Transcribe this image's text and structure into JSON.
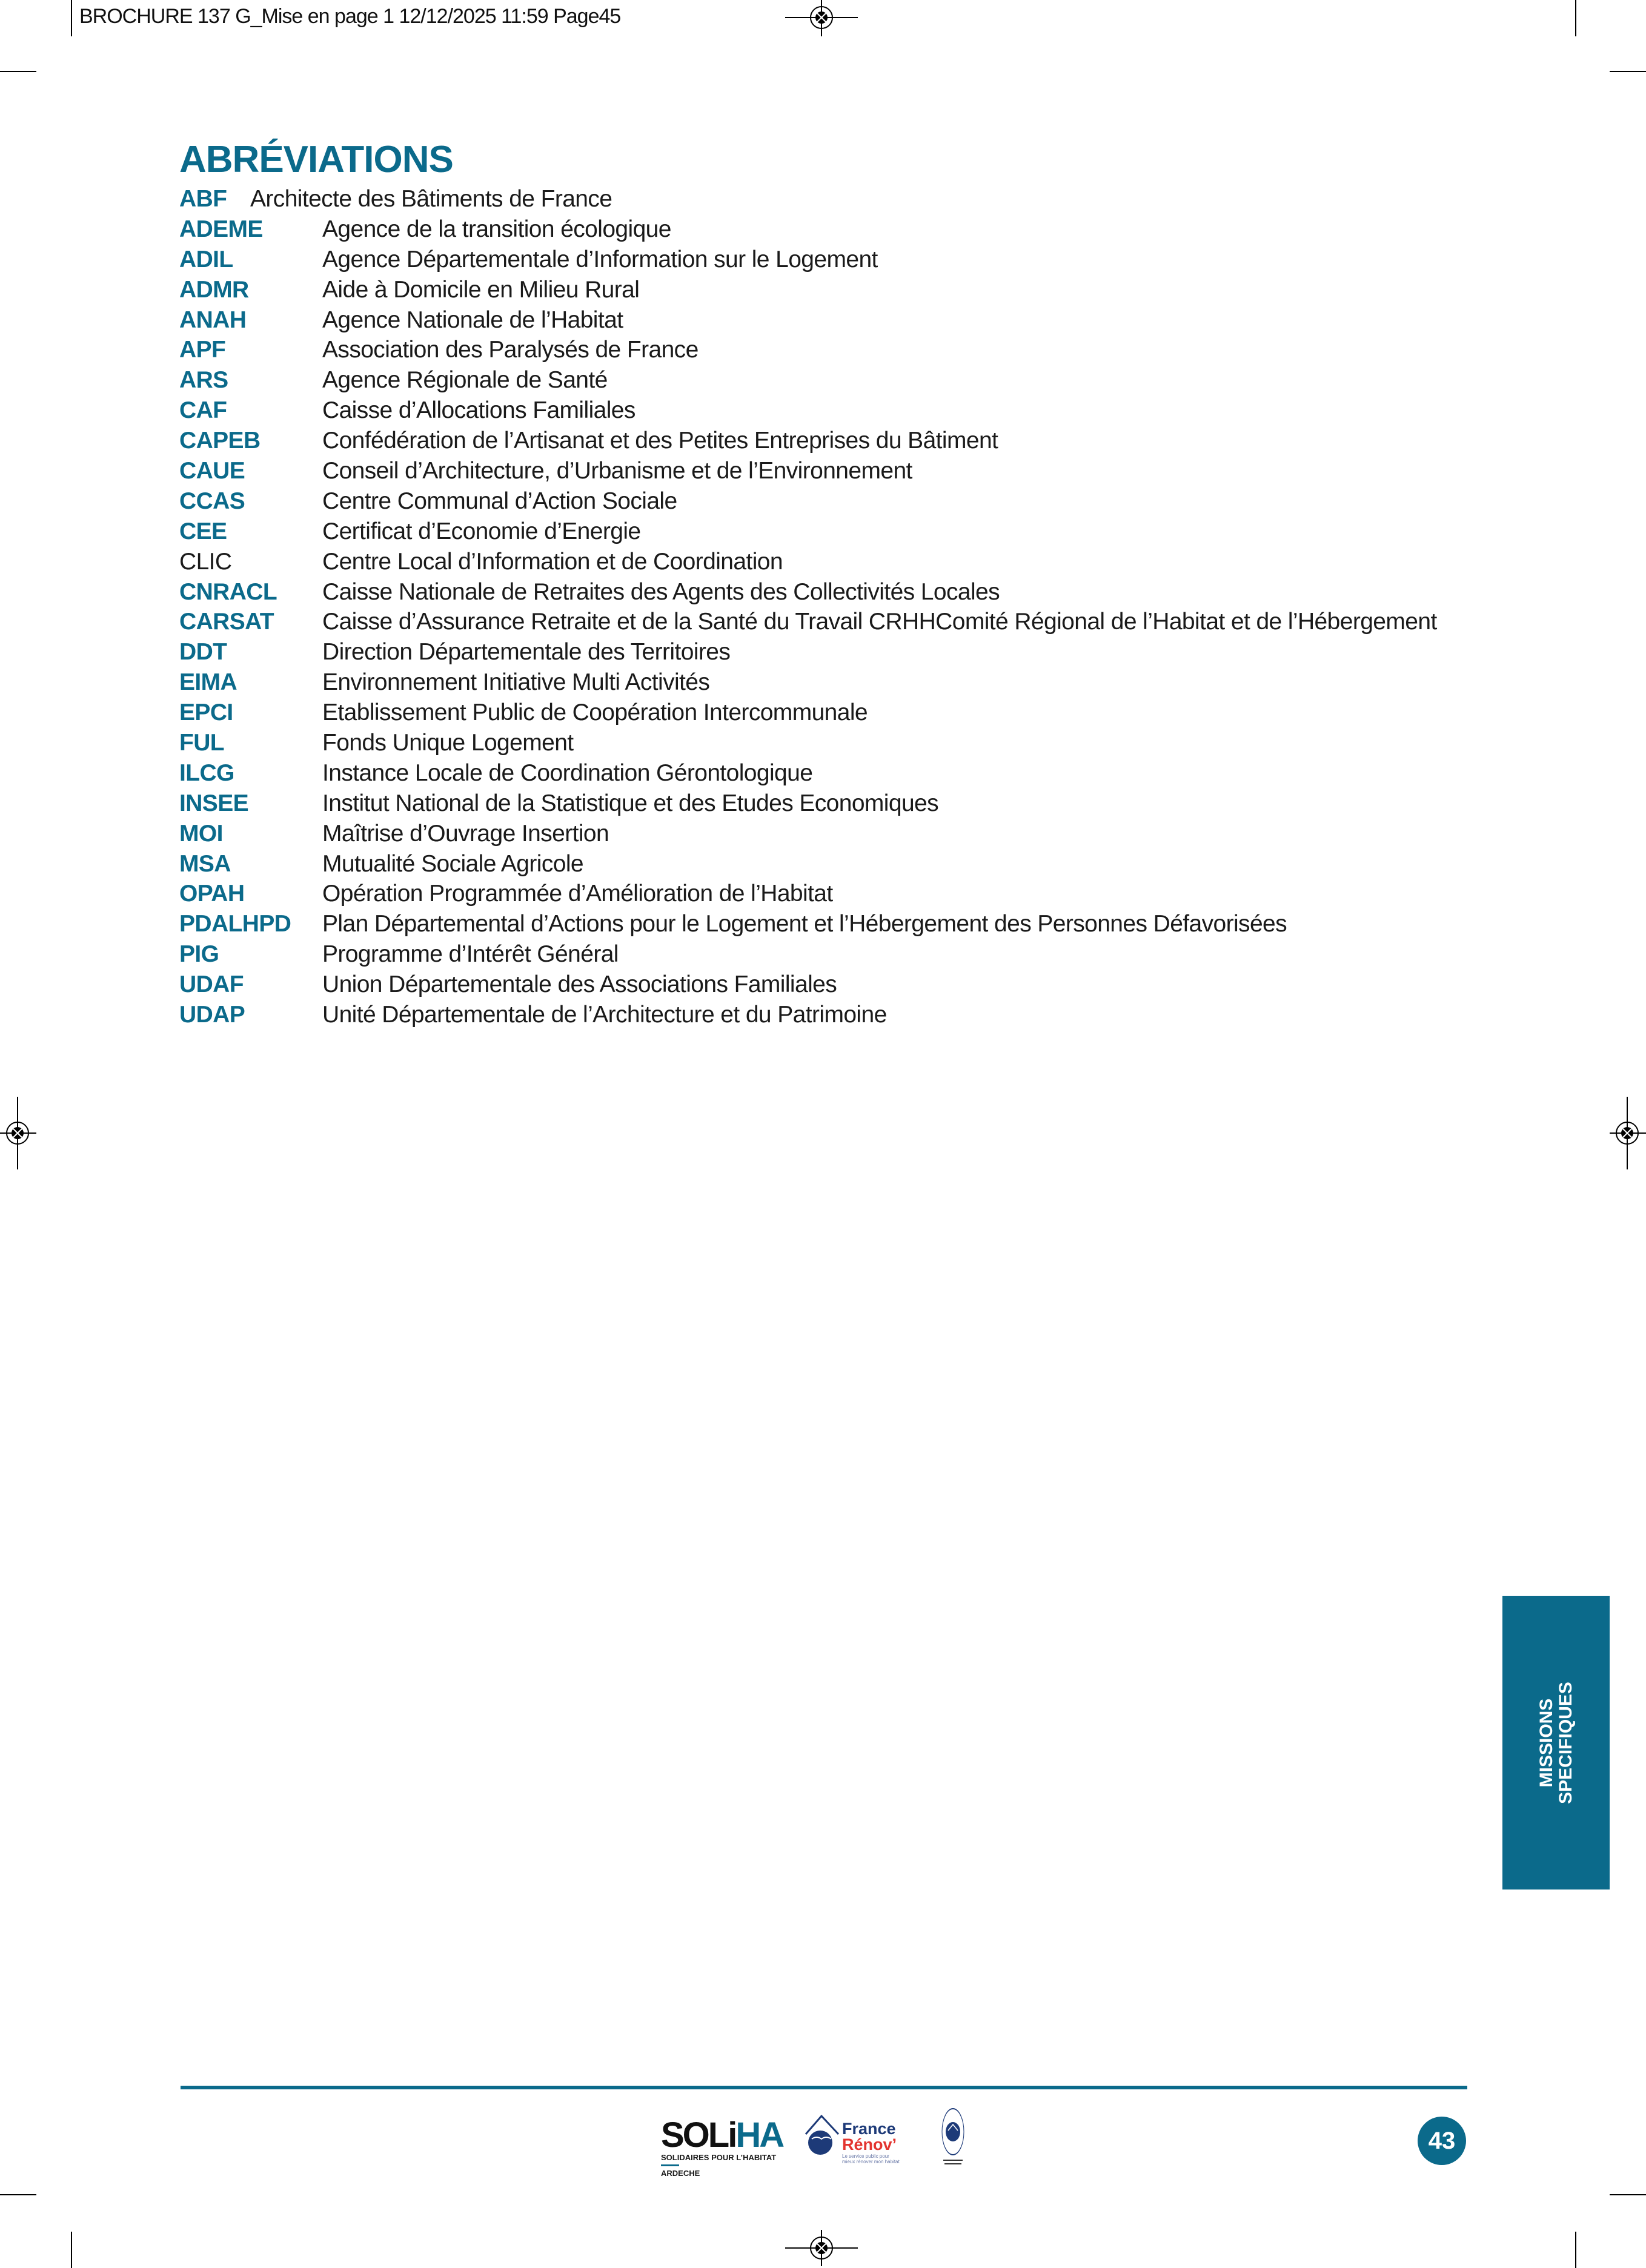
{
  "slug": "BROCHURE 137 G_Mise en page 1  12/12/2025  11:59  Page45",
  "title": "ABRÉVIATIONS",
  "colors": {
    "accent": "#0b6a8b"
  },
  "abbreviations": [
    {
      "abbr": "ABF",
      "desc": "Architecte des Bâtiments de France"
    },
    {
      "abbr": "ADEME",
      "desc": "Agence de la transition écologique"
    },
    {
      "abbr": "ADIL",
      "desc": "Agence Départementale d’Information sur le Logement"
    },
    {
      "abbr": "ADMR",
      "desc": "Aide à Domicile en Milieu Rural"
    },
    {
      "abbr": "ANAH",
      "desc": "Agence Nationale de l’Habitat"
    },
    {
      "abbr": "APF",
      "desc": "Association des Paralysés de France"
    },
    {
      "abbr": "ARS",
      "desc": "Agence Régionale de Santé"
    },
    {
      "abbr": "CAF",
      "desc": "Caisse d’Allocations Familiales"
    },
    {
      "abbr": "CAPEB",
      "desc": "Confédération de l’Artisanat et des Petites Entreprises du Bâtiment"
    },
    {
      "abbr": "CAUE",
      "desc": "Conseil d’Architecture, d’Urbanisme et de l’Environnement"
    },
    {
      "abbr": "CCAS",
      "desc": "Centre Communal d’Action Sociale"
    },
    {
      "abbr": "CEE",
      "desc": "Certificat d’Economie d’Energie"
    },
    {
      "abbr": "CLIC",
      "desc": "Centre Local d’Information et de Coordination"
    },
    {
      "abbr": "CNRACL",
      "desc": "Caisse Nationale de Retraites des Agents des Collectivités Locales"
    },
    {
      "abbr": "CARSAT",
      "desc": "Caisse d’Assurance Retraite et de la Santé du Travail CRHHComité Régional de l’Habitat et de l’Hébergement"
    },
    {
      "abbr": "DDT",
      "desc": "Direction Départementale des Territoires"
    },
    {
      "abbr": "EIMA",
      "desc": "Environnement Initiative Multi Activités"
    },
    {
      "abbr": "EPCI",
      "desc": "Etablissement Public de Coopération Intercommunale"
    },
    {
      "abbr": "FUL",
      "desc": "Fonds Unique Logement"
    },
    {
      "abbr": "ILCG",
      "desc": "Instance Locale de Coordination Gérontologique"
    },
    {
      "abbr": "INSEE",
      "desc": "Institut National de la Statistique et des Etudes Economiques"
    },
    {
      "abbr": "MOI",
      "desc": "Maîtrise d’Ouvrage Insertion"
    },
    {
      "abbr": "MSA",
      "desc": "Mutualité Sociale Agricole"
    },
    {
      "abbr": "OPAH",
      "desc": "Opération Programmée d’Amélioration de l’Habitat"
    },
    {
      "abbr": "PDALHPD",
      "desc": "Plan Départemental d’Actions pour le Logement et l’Hébergement des Personnes Défavorisées"
    },
    {
      "abbr": "PIG",
      "desc": "Programme d’Intérêt Général"
    },
    {
      "abbr": "UDAF",
      "desc": "Union Départementale des Associations Familiales"
    },
    {
      "abbr": "UDAP",
      "desc": "Unité Départementale de l’Architecture et du Patrimoine"
    }
  ],
  "side_tab": {
    "line1": "MISSIONS",
    "line2": "SPECIFIQUES"
  },
  "footer": {
    "soliha": {
      "name_a": "SOLi",
      "name_b": "HA",
      "tagline": "SOLIDAIRES POUR L’HABITAT",
      "region": "ARDECHE"
    },
    "france_renov": {
      "line1": "France",
      "line2": "Rénov’",
      "tagline": "Le service public pour mieux rénover mon habitat"
    },
    "seal": {
      "text": "Mon Accompagnateur Rénov’"
    },
    "page_number": "43"
  }
}
